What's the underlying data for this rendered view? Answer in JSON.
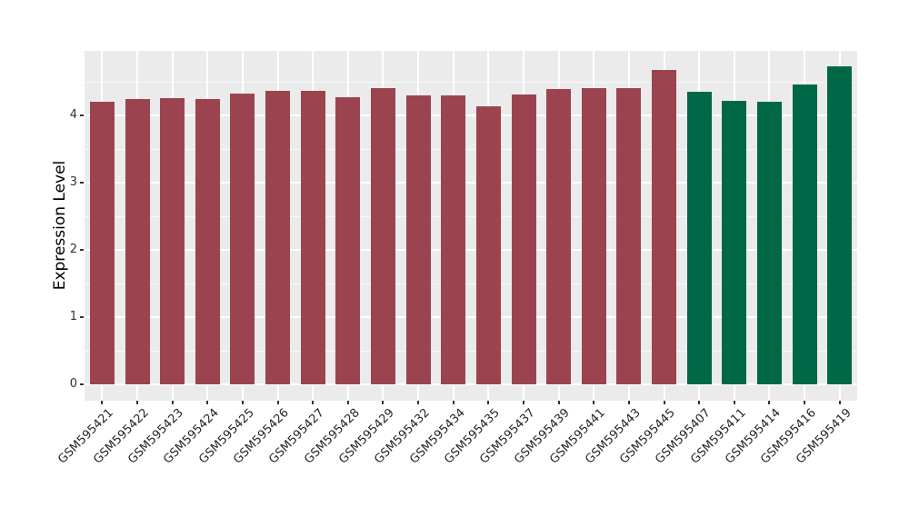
{
  "chart_data": {
    "type": "bar",
    "title": "",
    "xlabel": "",
    "ylabel": "Expression Level",
    "categories": [
      "GSM595421",
      "GSM595422",
      "GSM595423",
      "GSM595424",
      "GSM595425",
      "GSM595426",
      "GSM595427",
      "GSM595428",
      "GSM595429",
      "GSM595432",
      "GSM595434",
      "GSM595435",
      "GSM595437",
      "GSM595439",
      "GSM595441",
      "GSM595443",
      "GSM595445",
      "GSM595407",
      "GSM595411",
      "GSM595414",
      "GSM595416",
      "GSM595419"
    ],
    "values": [
      4.2,
      4.24,
      4.26,
      4.25,
      4.32,
      4.36,
      4.36,
      4.27,
      4.41,
      4.3,
      4.3,
      4.14,
      4.31,
      4.39,
      4.4,
      4.41,
      4.68,
      4.35,
      4.22,
      4.21,
      4.46,
      4.73
    ],
    "bar_groups": [
      "maroon",
      "maroon",
      "maroon",
      "maroon",
      "maroon",
      "maroon",
      "maroon",
      "maroon",
      "maroon",
      "maroon",
      "maroon",
      "maroon",
      "maroon",
      "maroon",
      "maroon",
      "maroon",
      "maroon",
      "green",
      "green",
      "green",
      "green",
      "green"
    ],
    "group_colors": {
      "maroon": "#9B4450",
      "green": "#006847"
    },
    "y_ticks": [
      0,
      1,
      2,
      3,
      4
    ],
    "y_minor_ticks": [
      0.5,
      1.5,
      2.5,
      3.5,
      4.5
    ],
    "ylim": [
      0,
      4.95
    ],
    "grid": true,
    "legend": "none",
    "panel_bg": "#EBEBEB",
    "grid_color": "#FFFFFF",
    "tick_text_color": "#333333",
    "axis_title_color": "#000000",
    "background_color": "#FFFFFF",
    "x_tick_angle_deg": 45
  }
}
